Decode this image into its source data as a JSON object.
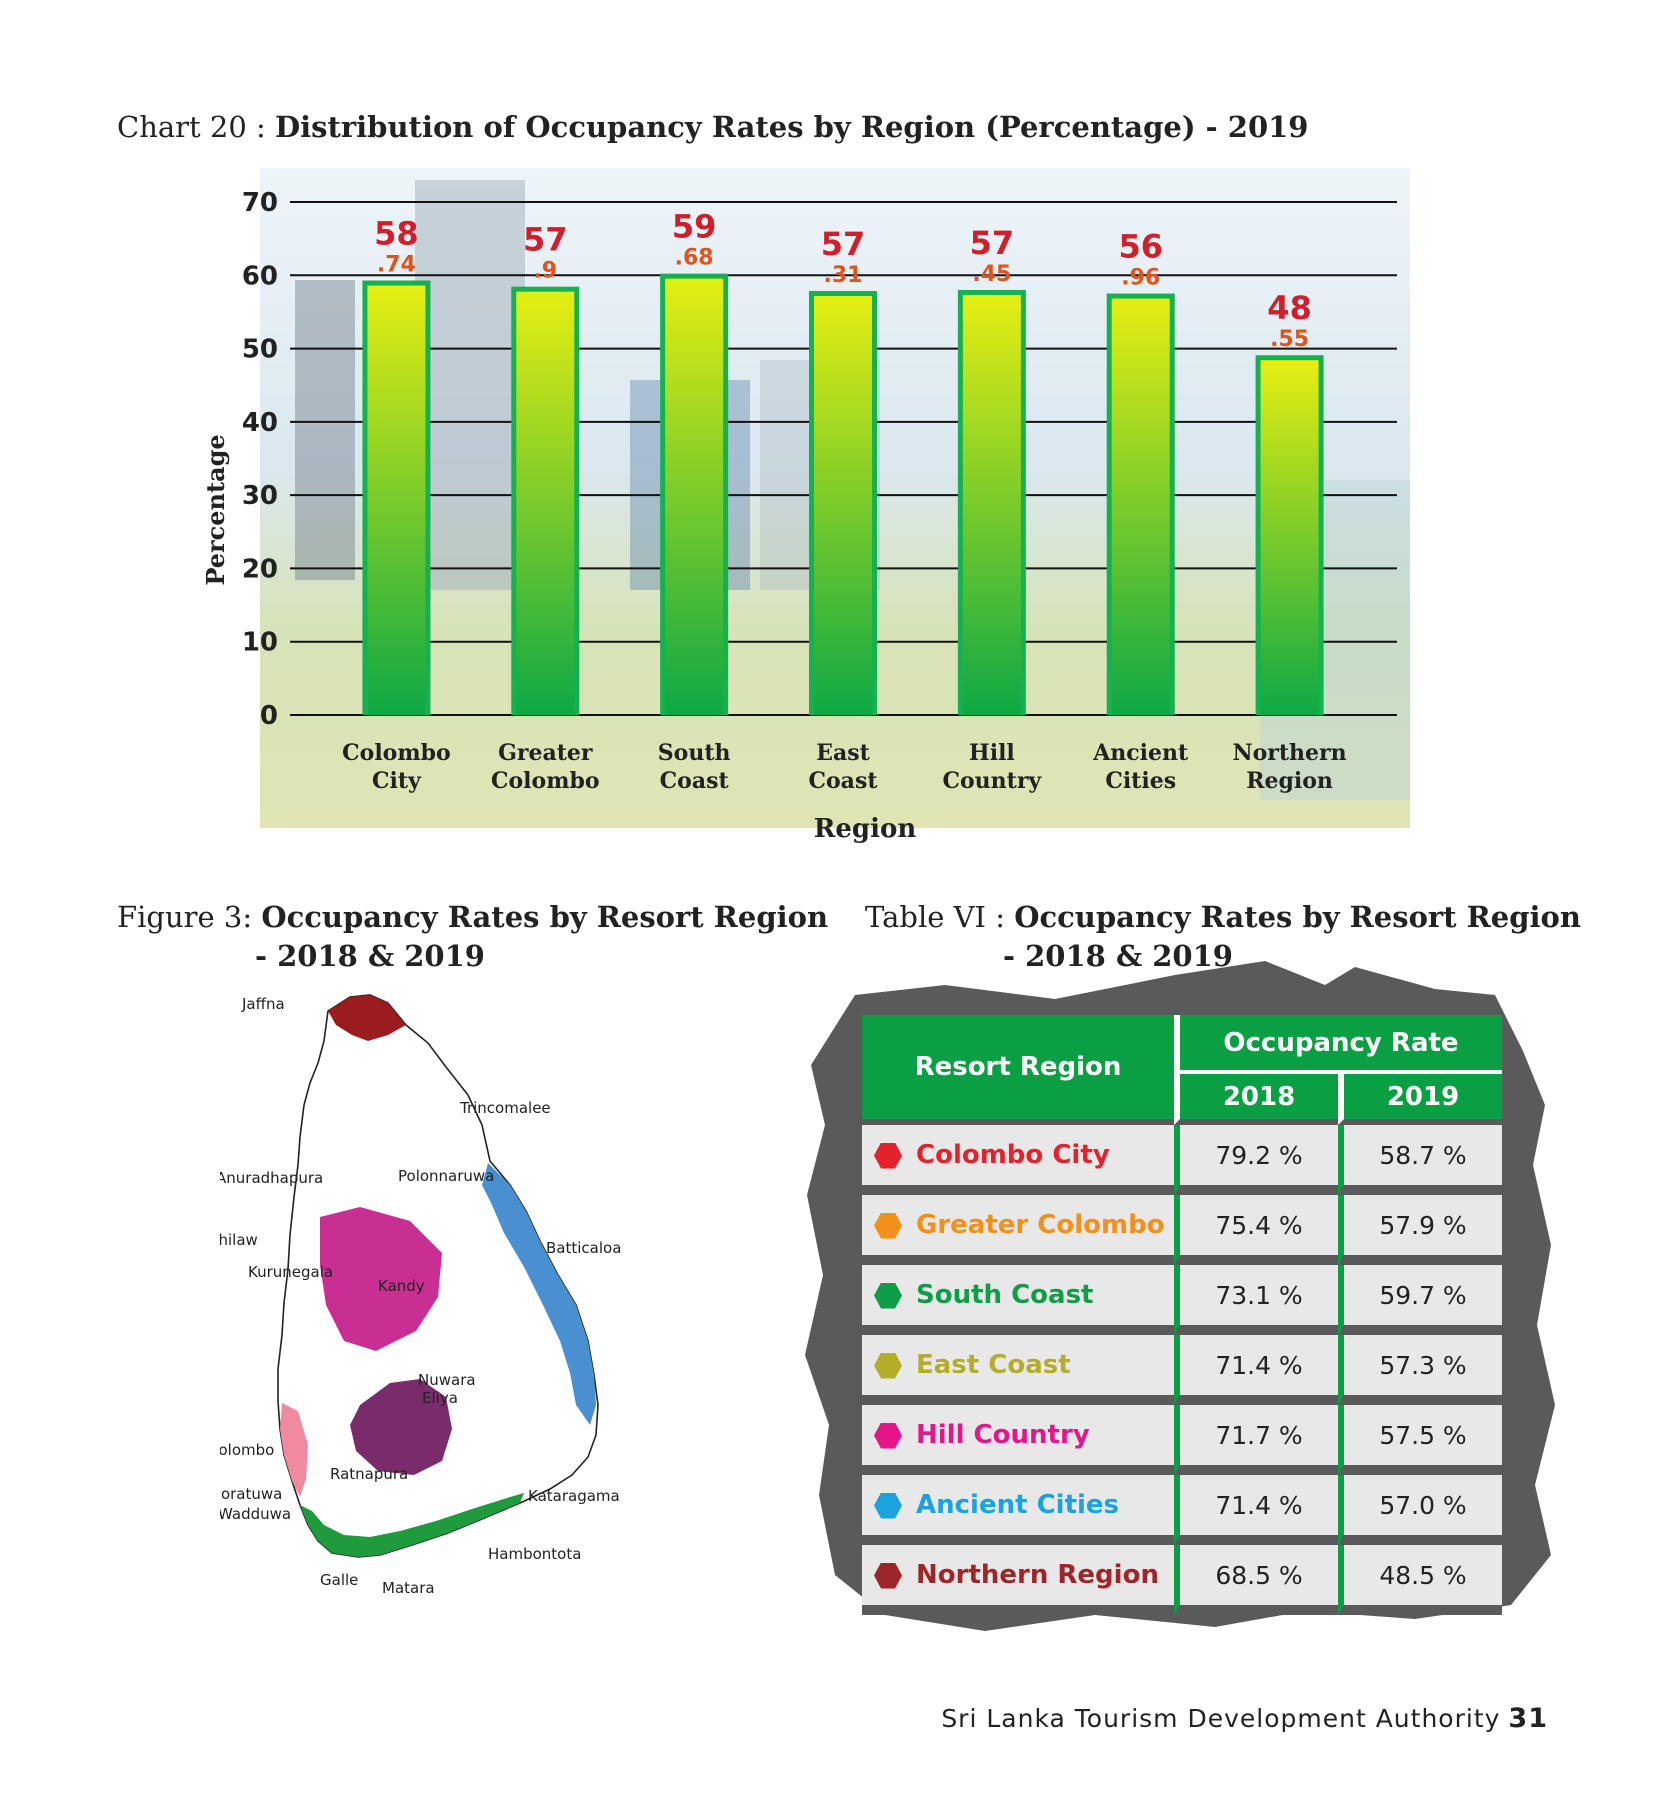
{
  "chart_caption": {
    "prefix": "Chart 20 : ",
    "title": "Distribution of Occupancy Rates by Region (Percentage) - 2019"
  },
  "chart_data": {
    "type": "bar",
    "title": "Distribution of Occupancy Rates by Region (Percentage) - 2019",
    "xlabel": "Region",
    "ylabel": "Percentage",
    "ylim": [
      0,
      70
    ],
    "yticks": [
      0,
      10,
      20,
      30,
      40,
      50,
      60,
      70
    ],
    "categories": [
      [
        "Colombo",
        "City"
      ],
      [
        "Greater",
        "Colombo"
      ],
      [
        "South",
        "Coast"
      ],
      [
        "East",
        "Coast"
      ],
      [
        "Hill",
        "Country"
      ],
      [
        "Ancient",
        "Cities"
      ],
      [
        "Northern",
        "Region"
      ]
    ],
    "values": [
      58.74,
      57.9,
      59.68,
      57.31,
      57.45,
      56.96,
      48.55
    ],
    "value_labels": [
      [
        "58",
        ".74"
      ],
      [
        "57",
        ".9"
      ],
      [
        "59",
        ".68"
      ],
      [
        "57",
        ".31"
      ],
      [
        "57",
        ".45"
      ],
      [
        "56",
        ".96"
      ],
      [
        "48",
        ".55"
      ]
    ],
    "grid": true,
    "colors": {
      "bar_top": "#e6ee12",
      "bar_bottom": "#0ea845",
      "bar_border": "#15b150",
      "label_int": "#d01f2a",
      "label_dec": "#e0541b"
    }
  },
  "figure_caption": {
    "prefix": "Figure 3: ",
    "title": "Occupancy Rates by Resort Region",
    "subtitle": "- 2018 & 2019"
  },
  "map": {
    "labels": {
      "jaffna": "Jaffna",
      "trincomalee": "Trincomalee",
      "anuradhapura": "Anuradhapura",
      "polonnaruwa": "Polonnaruwa",
      "chilaw": "Chilaw",
      "batticaloa": "Batticaloa",
      "kurunegala": "Kurunegala",
      "kandy": "Kandy",
      "nuwara": "Nuwara",
      "eliya": "Eliya",
      "colombo": "Colombo",
      "ratnapura": "Ratnapura",
      "kataragama": "Kataragama",
      "moratuwa": "Moratuwa",
      "wadduwa": "Wadduwa",
      "hambontota": "Hambontota",
      "galle": "Galle",
      "matara": "Matara"
    },
    "colors": {
      "northern": "#9b1c1f",
      "ancient": "#c92f93",
      "east": "#4a90d0",
      "hill": "#7a2b6b",
      "greater_colombo": "#f08aa0",
      "south": "#1f9a3c"
    }
  },
  "table_caption": {
    "prefix": "Table VI : ",
    "title": "Occupancy Rates by Resort Region",
    "subtitle": "- 2018 & 2019"
  },
  "table": {
    "header_region": "Resort Region",
    "header_rate": "Occupancy Rate",
    "year1": "2018",
    "year2": "2019",
    "rows": [
      {
        "region": "Colombo City",
        "y2018": "79.2 %",
        "y2019": "58.7 %",
        "color": "#e3222b"
      },
      {
        "region": "Greater Colombo",
        "y2018": "75.4 %",
        "y2019": "57.9 %",
        "color": "#f39019"
      },
      {
        "region": "South Coast",
        "y2018": "73.1 %",
        "y2019": "59.7 %",
        "color": "#0f9d48"
      },
      {
        "region": "East Coast",
        "y2018": "71.4 %",
        "y2019": "57.3 %",
        "color": "#b3ad2a"
      },
      {
        "region": "Hill Country",
        "y2018": "71.7 %",
        "y2019": "57.5 %",
        "color": "#e5168a"
      },
      {
        "region": "Ancient Cities",
        "y2018": "71.4 %",
        "y2019": "57.0 %",
        "color": "#1ba3e0"
      },
      {
        "region": "Northern Region",
        "y2018": "68.5 %",
        "y2019": "48.5 %",
        "color": "#9e2629"
      }
    ]
  },
  "footer": {
    "org": "Sri Lanka Tourism Development Authority",
    "page": "31"
  }
}
